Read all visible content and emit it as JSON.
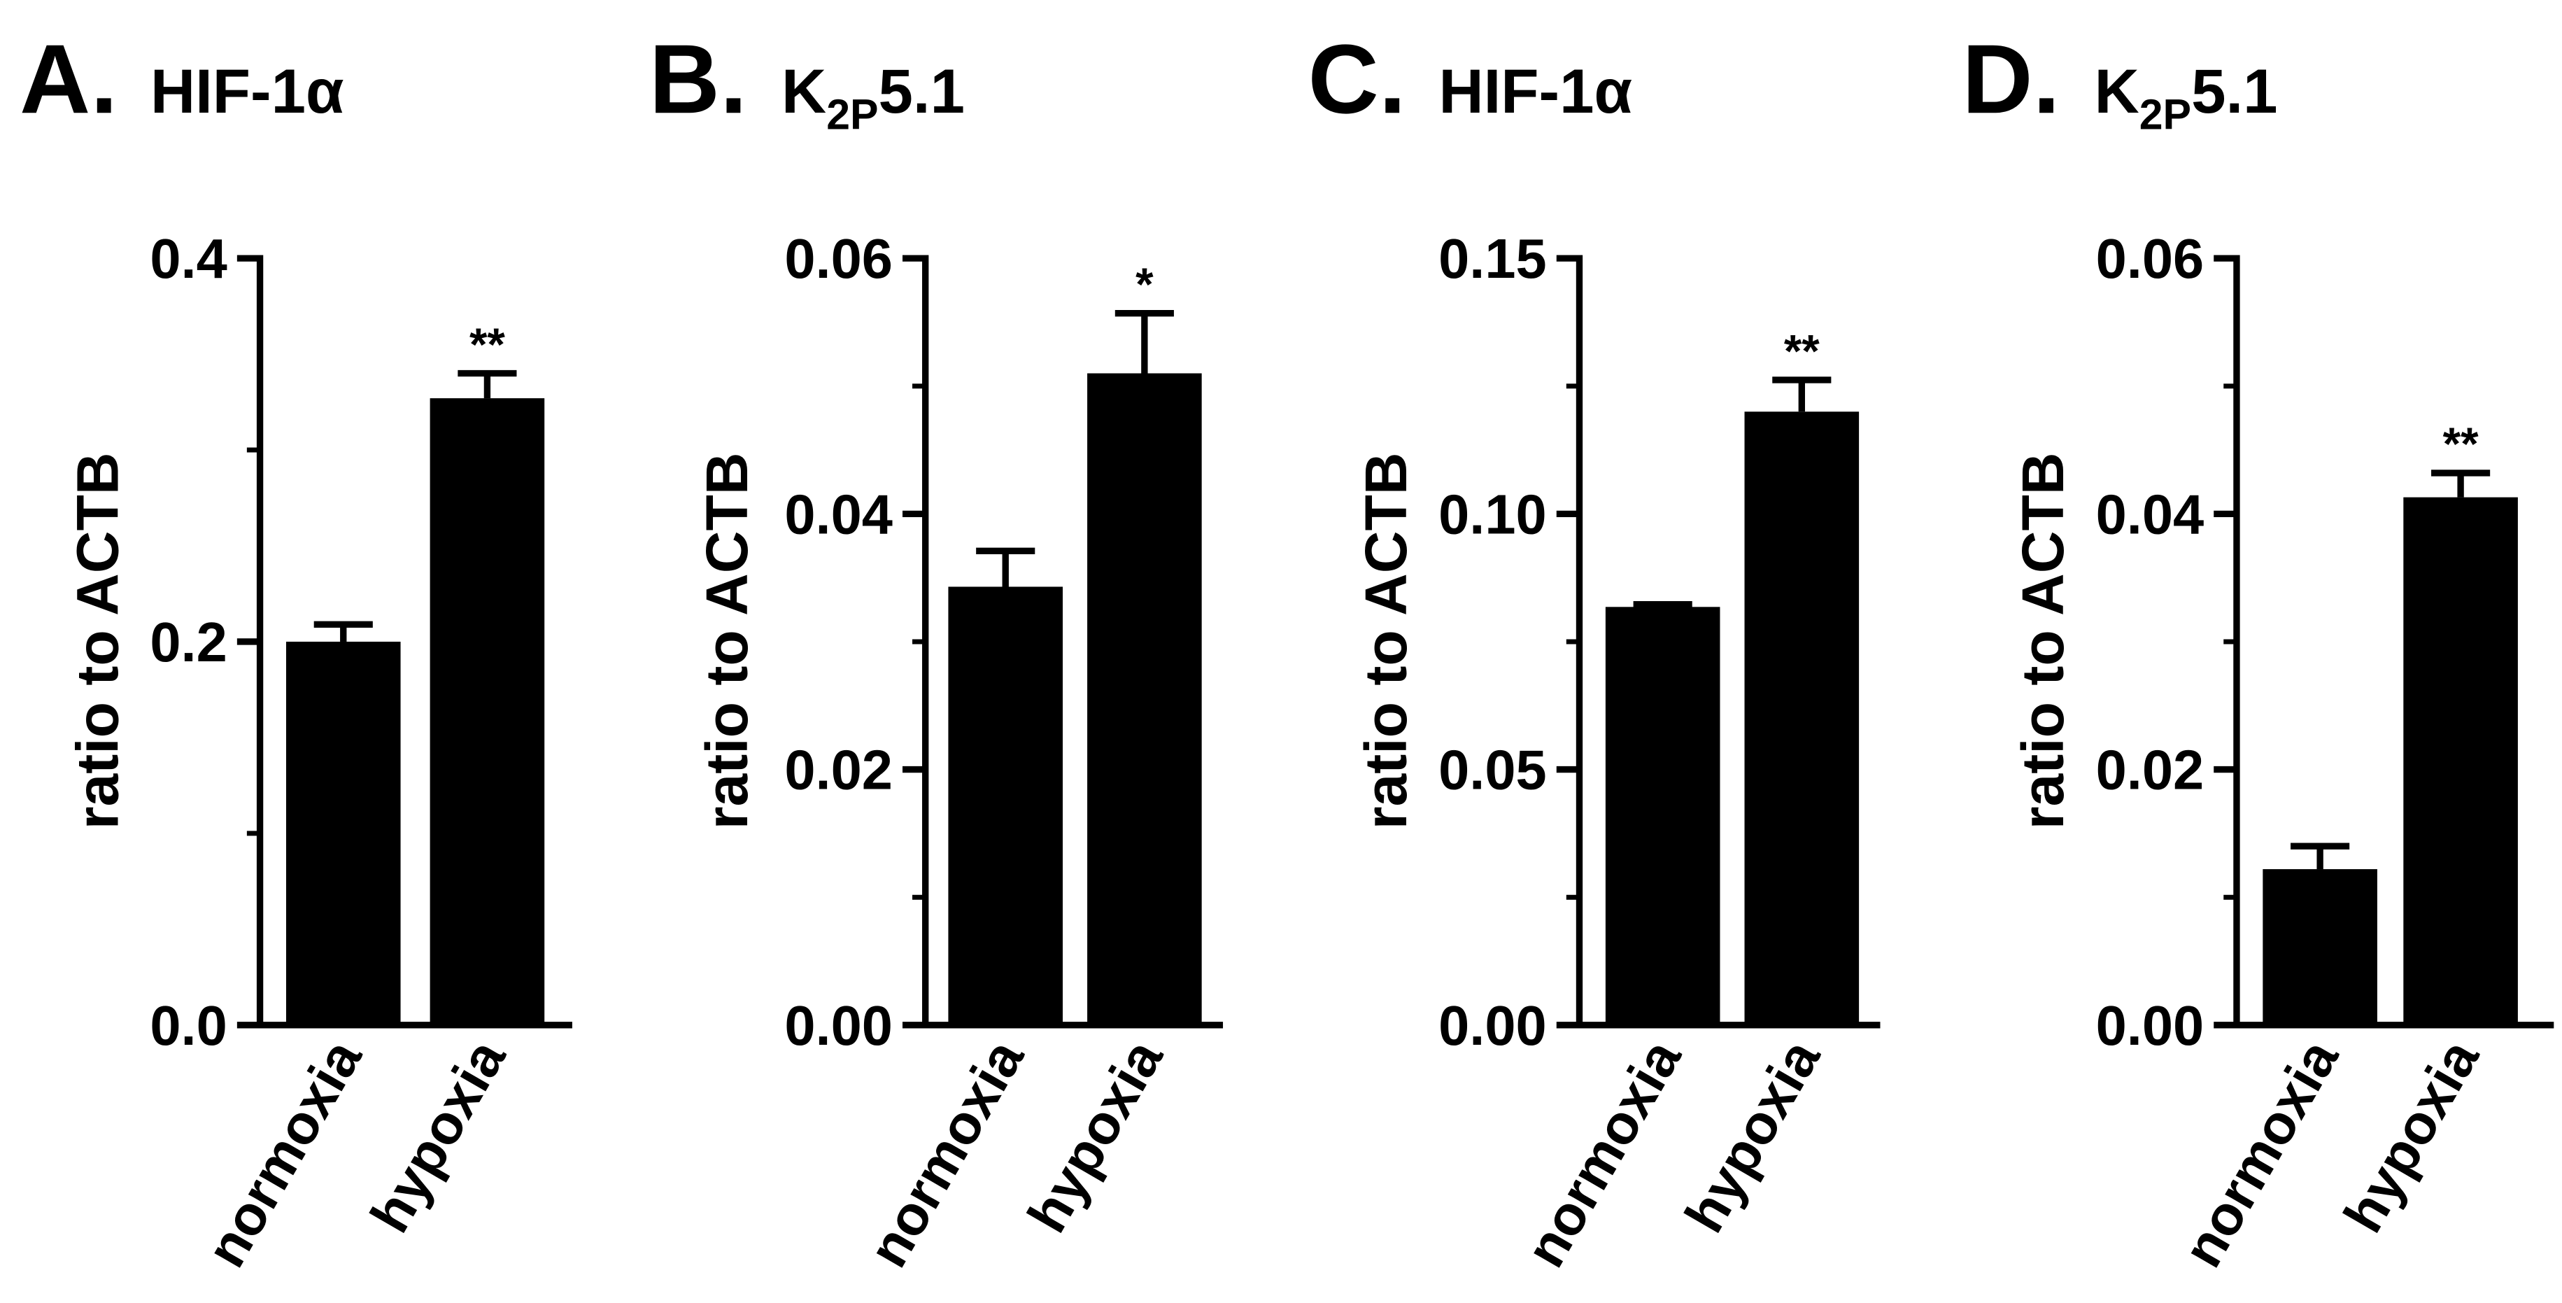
{
  "chart_data": [
    {
      "type": "bar",
      "panel_letter": "A.",
      "title": "HIF-1α",
      "ylabel": "ratio to ACTB",
      "ylim": [
        0,
        0.4
      ],
      "yticks": [
        "0.0",
        "0.2",
        "0.4"
      ],
      "categories": [
        "normoxia",
        "hypoxia"
      ],
      "values": [
        0.2,
        0.327
      ],
      "errors": [
        0.009,
        0.013
      ],
      "significance": [
        "",
        "**"
      ],
      "grid": false,
      "color": "#000000"
    },
    {
      "type": "bar",
      "panel_letter": "B.",
      "title_main": "K",
      "title_sub": "2P",
      "title_rest": "5.1",
      "ylabel": "ratio to ACTB",
      "ylim": [
        0,
        0.06
      ],
      "yticks": [
        "0.00",
        "0.02",
        "0.04",
        "0.06"
      ],
      "categories": [
        "normoxia",
        "hypoxia"
      ],
      "values": [
        0.0343,
        0.051
      ],
      "errors": [
        0.0028,
        0.0047
      ],
      "significance": [
        "",
        "*"
      ],
      "grid": false,
      "color": "#000000"
    },
    {
      "type": "bar",
      "panel_letter": "C.",
      "title": "HIF-1α",
      "ylabel": "ratio to ACTB",
      "ylim": [
        0,
        0.15
      ],
      "yticks": [
        "0.00",
        "0.05",
        "0.10",
        "0.15"
      ],
      "categories": [
        "normoxia",
        "hypoxia"
      ],
      "values": [
        0.0818,
        0.12
      ],
      "errors": [
        0.0005,
        0.0062
      ],
      "significance": [
        "",
        "**"
      ],
      "grid": false,
      "color": "#000000"
    },
    {
      "type": "bar",
      "panel_letter": "D.",
      "title_main": "K",
      "title_sub": "2P",
      "title_rest": "5.1",
      "ylabel": "ratio to ACTB",
      "ylim": [
        0,
        0.06
      ],
      "yticks": [
        "0.00",
        "0.02",
        "0.04",
        "0.06"
      ],
      "categories": [
        "normoxia",
        "hypoxia"
      ],
      "values": [
        0.0122,
        0.0413
      ],
      "errors": [
        0.0018,
        0.0019
      ],
      "significance": [
        "",
        "**"
      ],
      "grid": false,
      "color": "#000000"
    }
  ]
}
